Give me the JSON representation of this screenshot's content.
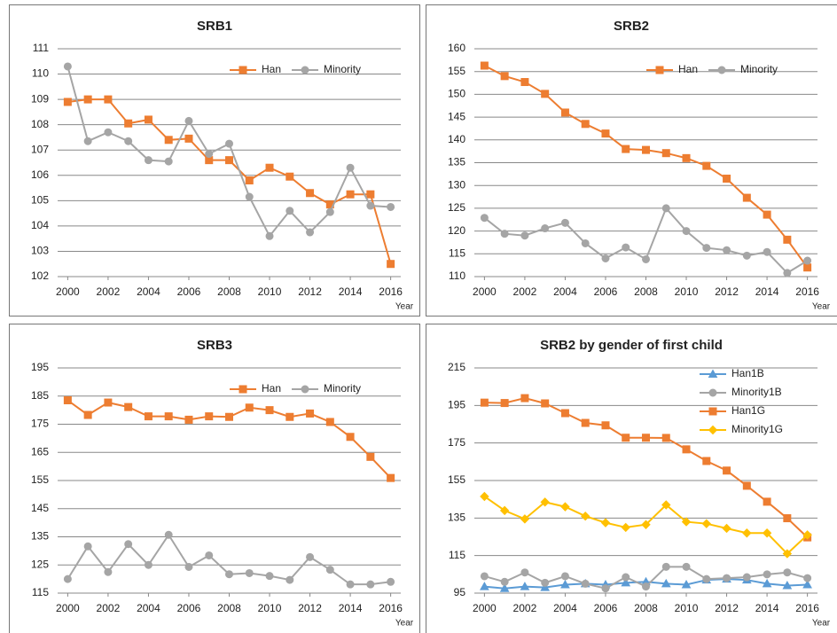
{
  "chart_data": [
    {
      "type": "line",
      "title": "SRB1",
      "x": [
        2000,
        2001,
        2002,
        2003,
        2004,
        2005,
        2006,
        2007,
        2008,
        2009,
        2010,
        2011,
        2012,
        2013,
        2014,
        2015,
        2016
      ],
      "x_label": "Year",
      "xlim": [
        1999.5,
        2016.5
      ],
      "xticks": [
        2000,
        2002,
        2004,
        2006,
        2008,
        2010,
        2012,
        2014,
        2016
      ],
      "ylim": [
        102,
        111
      ],
      "yticks": [
        102,
        103,
        104,
        105,
        106,
        107,
        108,
        109,
        110,
        111
      ],
      "grid": true,
      "legend": "upper right",
      "series": [
        {
          "name": "Han",
          "color": "#ED7D31",
          "marker": "square",
          "values": [
            108.9,
            109.0,
            109.0,
            108.05,
            108.2,
            107.4,
            107.45,
            106.6,
            106.6,
            105.8,
            106.3,
            105.95,
            105.3,
            104.85,
            105.25,
            105.25,
            102.5
          ]
        },
        {
          "name": "Minority",
          "color": "#A5A5A5",
          "marker": "circle",
          "values": [
            110.3,
            107.35,
            107.7,
            107.35,
            106.6,
            106.55,
            108.15,
            106.85,
            107.25,
            105.15,
            103.6,
            104.6,
            103.75,
            104.55,
            106.3,
            104.8,
            104.75
          ]
        }
      ]
    },
    {
      "type": "line",
      "title": "SRB2",
      "x": [
        2000,
        2001,
        2002,
        2003,
        2004,
        2005,
        2006,
        2007,
        2008,
        2009,
        2010,
        2011,
        2012,
        2013,
        2014,
        2015,
        2016
      ],
      "x_label": "Year",
      "xlim": [
        1999.5,
        2016.5
      ],
      "xticks": [
        2000,
        2002,
        2004,
        2006,
        2008,
        2010,
        2012,
        2014,
        2016
      ],
      "ylim": [
        110,
        160
      ],
      "yticks": [
        110,
        115,
        120,
        125,
        130,
        135,
        140,
        145,
        150,
        155,
        160
      ],
      "grid": true,
      "legend": "upper right",
      "series": [
        {
          "name": "Han",
          "color": "#ED7D31",
          "marker": "square",
          "values": [
            156.3,
            154.0,
            152.7,
            150.1,
            146.0,
            143.5,
            141.4,
            138.0,
            137.8,
            137.1,
            136.0,
            134.3,
            131.5,
            127.3,
            123.6,
            118.1,
            112.0
          ]
        },
        {
          "name": "Minority",
          "color": "#A5A5A5",
          "marker": "circle",
          "values": [
            122.9,
            119.4,
            119.0,
            120.6,
            121.8,
            117.3,
            114.0,
            116.4,
            113.8,
            125.0,
            120.0,
            116.3,
            115.8,
            114.6,
            115.4,
            110.8,
            113.5
          ]
        }
      ]
    },
    {
      "type": "line",
      "title": "SRB3",
      "x": [
        2000,
        2001,
        2002,
        2003,
        2004,
        2005,
        2006,
        2007,
        2008,
        2009,
        2010,
        2011,
        2012,
        2013,
        2014,
        2015,
        2016
      ],
      "x_label": "Year",
      "xlim": [
        1999.5,
        2016.5
      ],
      "xticks": [
        2000,
        2002,
        2004,
        2006,
        2008,
        2010,
        2012,
        2014,
        2016
      ],
      "ylim": [
        115,
        195
      ],
      "yticks": [
        115,
        125,
        135,
        145,
        155,
        165,
        175,
        185,
        195
      ],
      "grid": true,
      "legend": "upper right",
      "series": [
        {
          "name": "Han",
          "color": "#ED7D31",
          "marker": "square",
          "values": [
            183.5,
            178.3,
            182.7,
            181.1,
            177.8,
            177.8,
            176.6,
            177.8,
            177.6,
            180.9,
            180.0,
            177.6,
            178.8,
            175.8,
            170.5,
            163.4,
            155.9
          ]
        },
        {
          "name": "Minority",
          "color": "#A5A5A5",
          "marker": "circle",
          "values": [
            120.0,
            131.6,
            122.5,
            132.4,
            125.0,
            135.7,
            124.3,
            128.4,
            121.7,
            122.1,
            121.1,
            119.7,
            127.8,
            123.3,
            118.1,
            118.1,
            119.0
          ]
        }
      ]
    },
    {
      "type": "line",
      "title": "SRB2 by gender of first child",
      "x": [
        2000,
        2001,
        2002,
        2003,
        2004,
        2005,
        2006,
        2007,
        2008,
        2009,
        2010,
        2011,
        2012,
        2013,
        2014,
        2015,
        2016
      ],
      "x_label": "Year",
      "xlim": [
        1999.5,
        2016.5
      ],
      "xticks": [
        2000,
        2002,
        2004,
        2006,
        2008,
        2010,
        2012,
        2014,
        2016
      ],
      "ylim": [
        95,
        215
      ],
      "yticks": [
        95,
        115,
        135,
        155,
        175,
        195,
        215
      ],
      "grid": true,
      "legend": "upper right",
      "series": [
        {
          "name": "Han1B",
          "color": "#5B9BD5",
          "marker": "triangle",
          "values": [
            98.5,
            97.5,
            98.5,
            98,
            99.5,
            100,
            99.5,
            100.5,
            101,
            100,
            99.5,
            102,
            102.5,
            102,
            100,
            99,
            99.5
          ]
        },
        {
          "name": "Minority1B",
          "color": "#A5A5A5",
          "marker": "circle",
          "values": [
            104,
            101,
            106,
            100.5,
            104,
            100,
            97.5,
            103.5,
            98.5,
            109,
            109,
            102.5,
            103,
            103.5,
            105,
            106,
            103
          ]
        },
        {
          "name": "Han1G",
          "color": "#ED7D31",
          "marker": "square",
          "values": [
            196.5,
            196.3,
            198.9,
            196.1,
            190.9,
            185.7,
            184.4,
            177.8,
            177.8,
            177.7,
            171.6,
            165.4,
            160.3,
            152.2,
            143.7,
            134.9,
            124.7
          ]
        },
        {
          "name": "Minority1G",
          "color": "#FFC000",
          "marker": "diamond",
          "values": [
            146.5,
            139,
            134.5,
            143.5,
            141,
            136,
            132.5,
            130,
            131.5,
            142,
            133,
            132,
            129.5,
            127,
            127,
            116,
            126
          ]
        }
      ]
    }
  ]
}
